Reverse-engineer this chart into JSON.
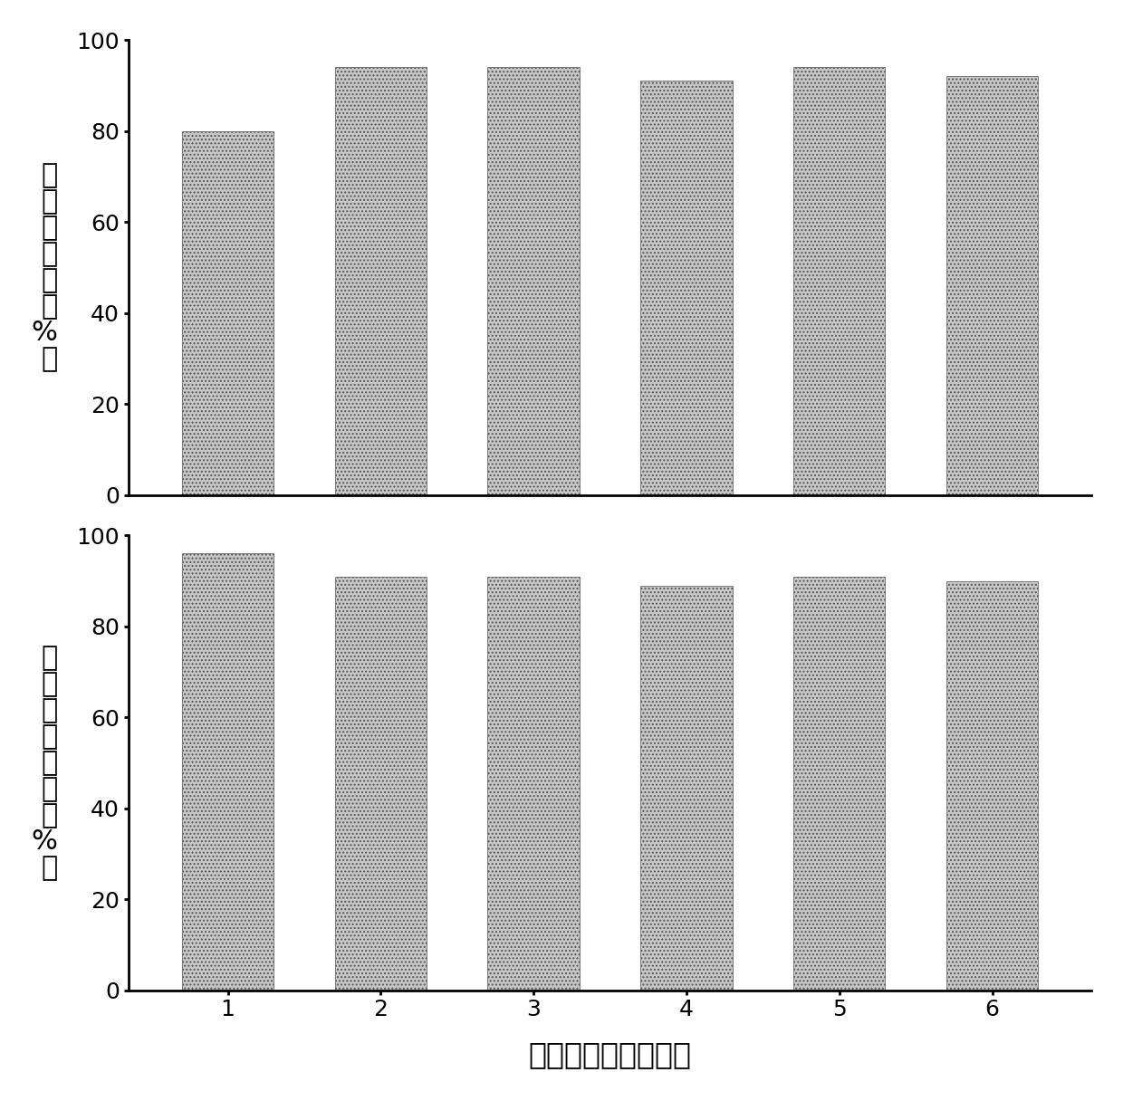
{
  "top_values": [
    80,
    94,
    94,
    91,
    94,
    92
  ],
  "bottom_values": [
    96,
    91,
    91,
    89,
    91,
    90
  ],
  "categories": [
    1,
    2,
    3,
    4,
    5,
    6
  ],
  "top_ylabel": "苯腹转化率（%）",
  "bottom_ylabel": "二苯胺选择性（%）",
  "xlabel": "假化剂重复使用次数",
  "ylim": [
    0,
    100
  ],
  "yticks": [
    0,
    20,
    40,
    60,
    80,
    100
  ],
  "bar_color": "#c8c8c8",
  "bar_edgecolor": "#555555",
  "hatch": "....",
  "bar_width": 0.6,
  "figsize": [
    12.4,
    12.16
  ],
  "dpi": 100,
  "label_fontsize": 22,
  "tick_fontsize": 18,
  "xlabel_fontsize": 24,
  "spine_linewidth": 2.0,
  "bar_linewidth": 0.5
}
